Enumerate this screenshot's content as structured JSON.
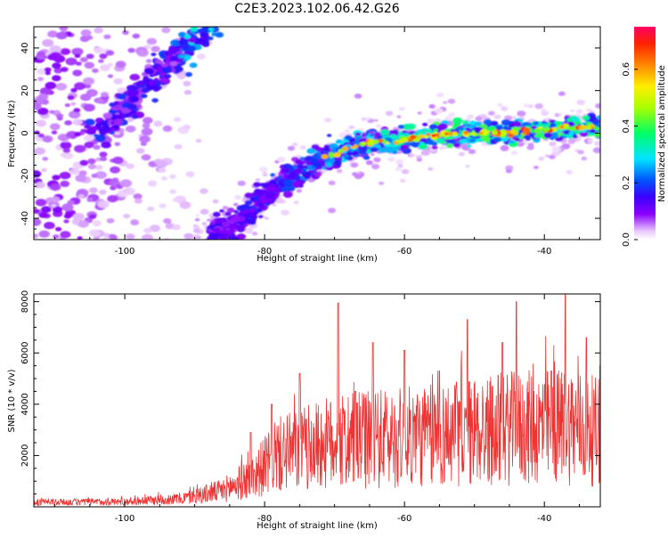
{
  "figure": {
    "title": "C2E3.2023.102.06.42.G26"
  },
  "chart_data": [
    {
      "type": "heatmap",
      "xlabel": "Height of straight line (km)",
      "ylabel": "Frequency (Hz)",
      "xlim": [
        -113,
        -32
      ],
      "ylim": [
        -50,
        50
      ],
      "xticks": [
        -100,
        -80,
        -60,
        -40
      ],
      "yticks": [
        -40,
        -20,
        0,
        20,
        40
      ],
      "colorbar": {
        "label": "Normalized spectral amplitude",
        "range": [
          0.0,
          0.75
        ],
        "ticks": [
          0.0,
          0.2,
          0.4,
          0.6
        ]
      },
      "features": [
        {
          "description_key": "upper-left band",
          "x_start": -104,
          "y_start": 0,
          "x_end": -88,
          "y_end": 50
        },
        {
          "description_key": "main band",
          "points": [
            [
              -88,
              -50
            ],
            [
              -84,
              -42
            ],
            [
              -80,
              -30
            ],
            [
              -76,
              -20
            ],
            [
              -72,
              -12
            ],
            [
              -68,
              -7
            ],
            [
              -64,
              -4
            ],
            [
              -60,
              -3
            ],
            [
              -56,
              -1.5
            ],
            [
              -52,
              0
            ],
            [
              -48,
              0
            ],
            [
              -44,
              0.5
            ],
            [
              -40,
              1.5
            ],
            [
              -36,
              2.5
            ],
            [
              -32,
              3
            ]
          ]
        }
      ]
    },
    {
      "type": "line",
      "xlabel": "Height of straight line (km)",
      "ylabel": "SNR (10 * v/v)",
      "xlim": [
        -113,
        -32
      ],
      "ylim": [
        0,
        8300
      ],
      "xticks": [
        -100,
        -80,
        -60,
        -40
      ],
      "yticks": [
        2000,
        4000,
        6000,
        8000
      ],
      "color": "#ee3333",
      "grid": false,
      "envelope": [
        [
          -113,
          300
        ],
        [
          -100,
          350
        ],
        [
          -92,
          550
        ],
        [
          -86,
          1100
        ],
        [
          -82,
          2000
        ],
        [
          -78,
          3500
        ],
        [
          -72,
          4200
        ],
        [
          -64,
          4600
        ],
        [
          -56,
          4800
        ],
        [
          -48,
          5200
        ],
        [
          -40,
          5400
        ],
        [
          -36,
          5500
        ],
        [
          -32,
          5000
        ]
      ],
      "peaks": [
        [
          -82,
          2900
        ],
        [
          -79,
          4000
        ],
        [
          -75,
          5200
        ],
        [
          -69.5,
          7950
        ],
        [
          -67,
          4500
        ],
        [
          -64.5,
          6400
        ],
        [
          -60,
          6100
        ],
        [
          -55,
          5300
        ],
        [
          -51,
          7300
        ],
        [
          -46,
          6400
        ],
        [
          -44,
          8000
        ],
        [
          -39,
          5300
        ],
        [
          -37,
          8300
        ],
        [
          -34,
          6600
        ],
        [
          -32,
          5500
        ]
      ]
    }
  ]
}
